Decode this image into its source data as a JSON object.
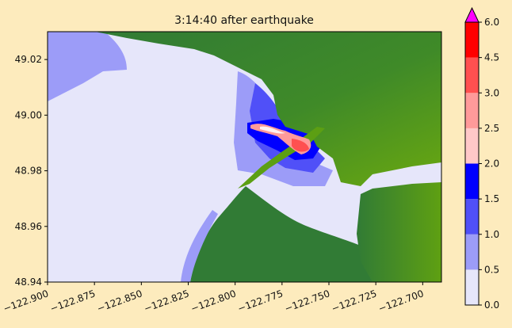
{
  "chart_data": {
    "type": "heatmap",
    "title": "3:14:40 after earthquake",
    "x_ticks": [
      "−122.900",
      "−122.875",
      "−122.850",
      "−122.825",
      "−122.800",
      "−122.775",
      "−122.750",
      "−122.725",
      "−122.700"
    ],
    "x_tick_values": [
      -122.9,
      -122.875,
      -122.85,
      -122.825,
      -122.8,
      -122.775,
      -122.75,
      -122.725,
      -122.7
    ],
    "y_ticks": [
      "49.02",
      "49.00",
      "48.98",
      "48.96",
      "48.94"
    ],
    "y_tick_values": [
      49.02,
      49.0,
      48.98,
      48.96,
      48.94
    ],
    "xlim": [
      -122.9,
      -122.69
    ],
    "ylim": [
      48.94,
      49.03
    ],
    "colorbar": {
      "levels": [
        0.0,
        0.5,
        1.0,
        1.5,
        2.0,
        2.5,
        3.0,
        4.5,
        6.0
      ],
      "labels": [
        "0.0",
        "0.5",
        "1.0",
        "1.5",
        "2.0",
        "2.5",
        "3.0",
        "4.5",
        "6.0"
      ],
      "colors": [
        "#e6e6fa",
        "#9c9cf8",
        "#5050f8",
        "#0000ff",
        "#ffc8c8",
        "#ff9a9a",
        "#ff5050",
        "#ff0000"
      ],
      "extend_color": "#ff00ff"
    },
    "land_colors": [
      "#317b35",
      "#5c9f13",
      "#6aa810"
    ]
  }
}
